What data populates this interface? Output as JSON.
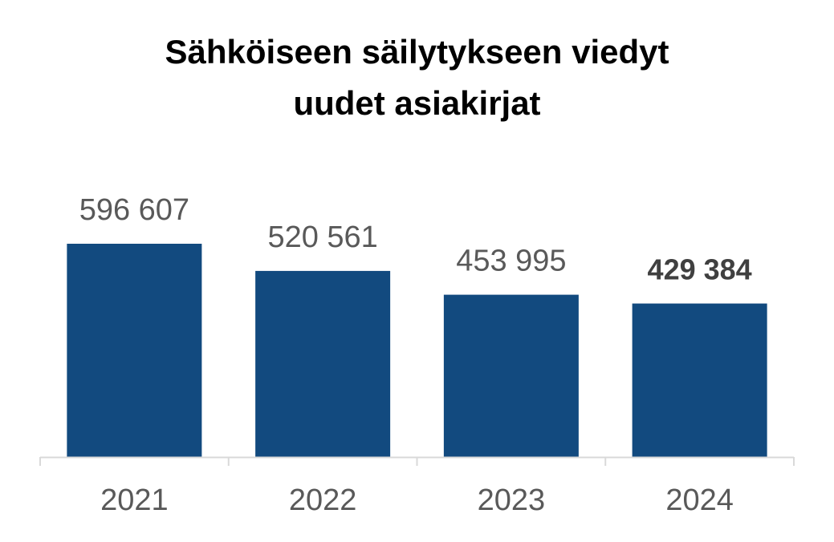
{
  "chart_data": {
    "type": "bar",
    "title_lines": [
      "Sähköiseen säilytykseen viedyt",
      "uudet asiakirjat"
    ],
    "categories": [
      "2021",
      "2022",
      "2023",
      "2024"
    ],
    "values": [
      596607,
      520561,
      453995,
      429384
    ],
    "value_labels": [
      "596 607",
      "520 561",
      "453 995",
      "429 384"
    ],
    "highlight_index": 3,
    "ylim": [
      0,
      596607
    ],
    "grid": false,
    "legend": "none",
    "bar_color": "#124a7f",
    "axis_color": "#d9d9d9",
    "label_color": "#595959",
    "highlight_label_color": "#404040"
  }
}
